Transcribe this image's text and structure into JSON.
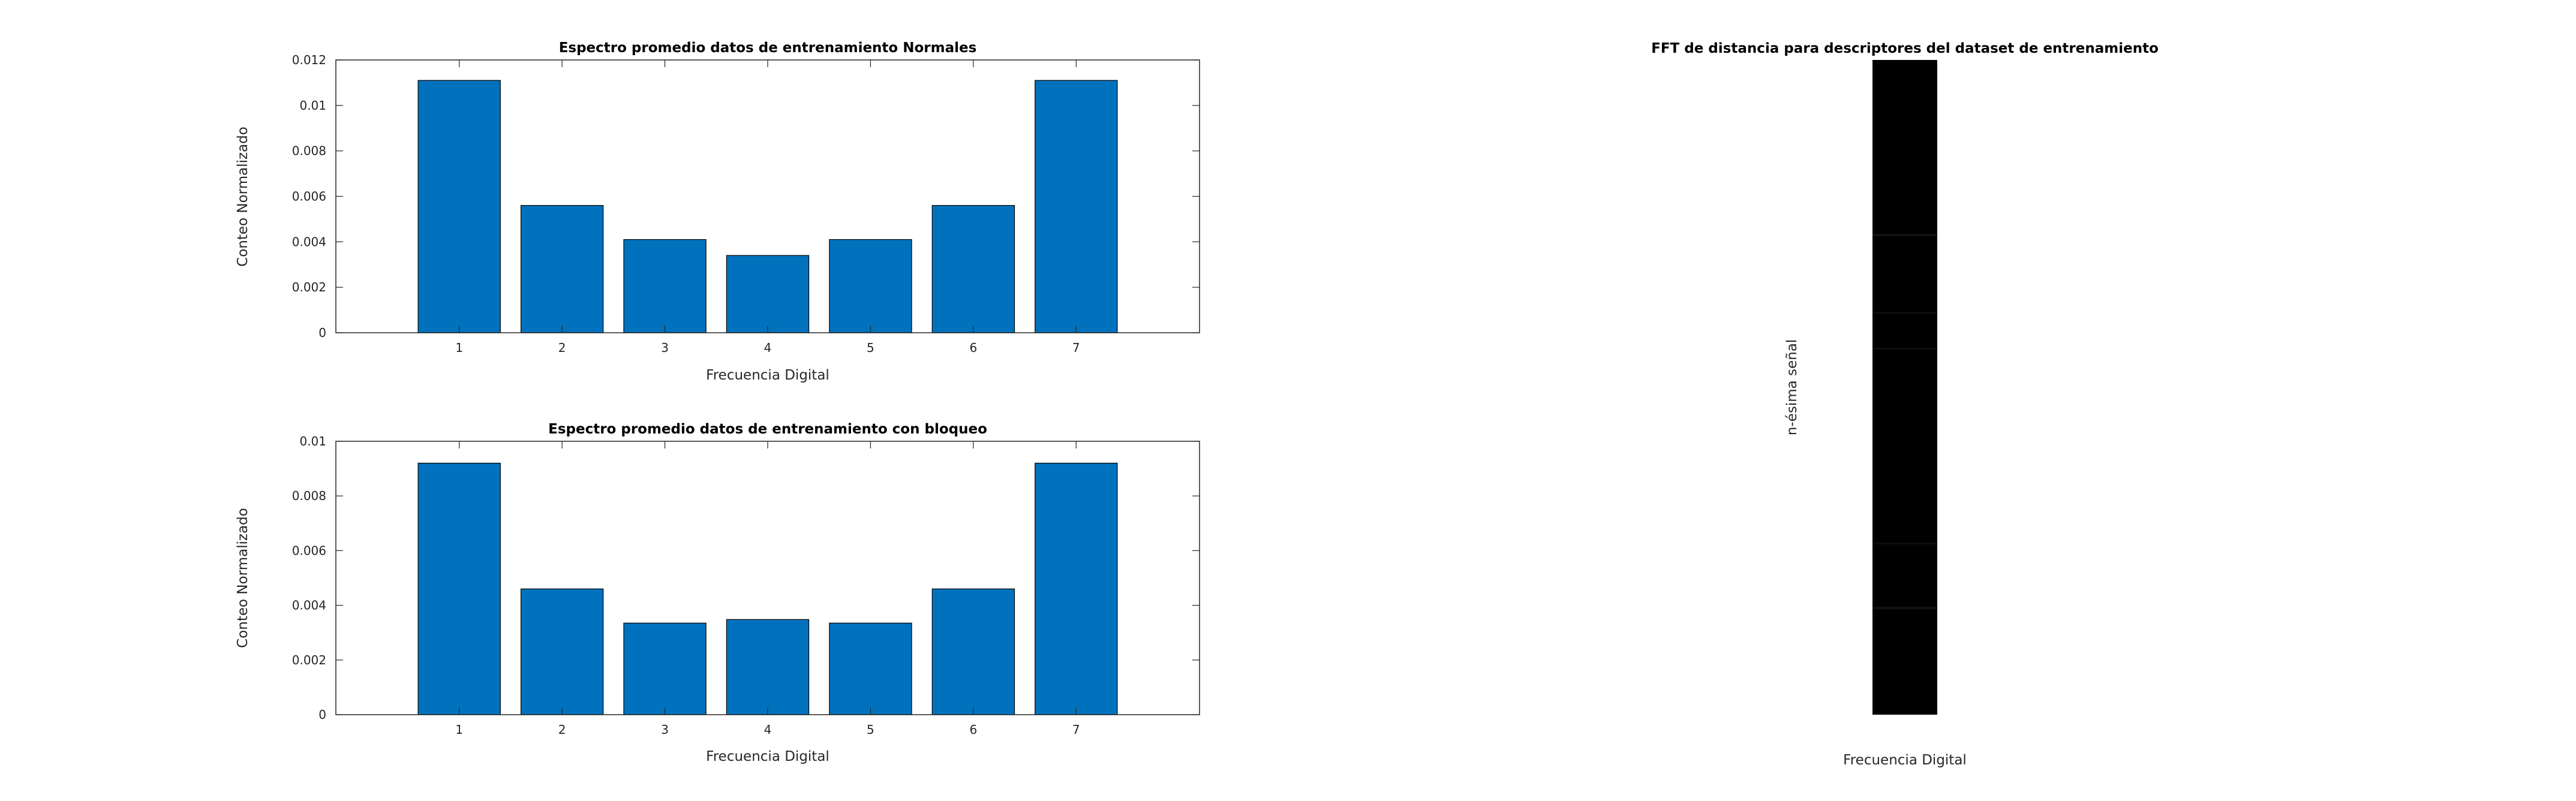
{
  "colors": {
    "bar": "#0072BD",
    "bar_edge": "#000000",
    "axes": "#262626",
    "background": "#ffffff",
    "heatmap": "#000000"
  },
  "chart_data": [
    {
      "type": "bar",
      "title": "Espectro promedio datos de entrenamiento Normales",
      "xlabel": "Frecuencia Digital",
      "ylabel": "Conteo Normalizado",
      "categories": [
        "1",
        "2",
        "3",
        "4",
        "5",
        "6",
        "7"
      ],
      "values": [
        0.0111,
        0.0056,
        0.0041,
        0.0034,
        0.0041,
        0.0056,
        0.0111
      ],
      "xlim": [
        -0.2,
        8.2
      ],
      "ylim": [
        0,
        0.012
      ],
      "yticks": [
        "0",
        "0.002",
        "0.004",
        "0.006",
        "0.008",
        "0.01",
        "0.012"
      ],
      "grid": false
    },
    {
      "type": "bar",
      "title": "Espectro promedio datos de entrenamiento con bloqueo",
      "xlabel": "Frecuencia Digital",
      "ylabel": "Conteo Normalizado",
      "categories": [
        "1",
        "2",
        "3",
        "4",
        "5",
        "6",
        "7"
      ],
      "values": [
        0.0092,
        0.0046,
        0.00335,
        0.00348,
        0.00335,
        0.0046,
        0.0092
      ],
      "xlim": [
        -0.2,
        8.2
      ],
      "ylim": [
        0,
        0.01
      ],
      "yticks": [
        "0",
        "0.002",
        "0.004",
        "0.006",
        "0.008",
        "0.01"
      ],
      "grid": false
    },
    {
      "type": "heatmap",
      "title": "FFT de distancia para descriptores del dataset de entrenamiento",
      "xlabel": "Frecuencia Digital",
      "ylabel": "n-ésima señal",
      "colormap": "gray",
      "description_values": "near-zero intensities (almost entirely black)"
    }
  ]
}
